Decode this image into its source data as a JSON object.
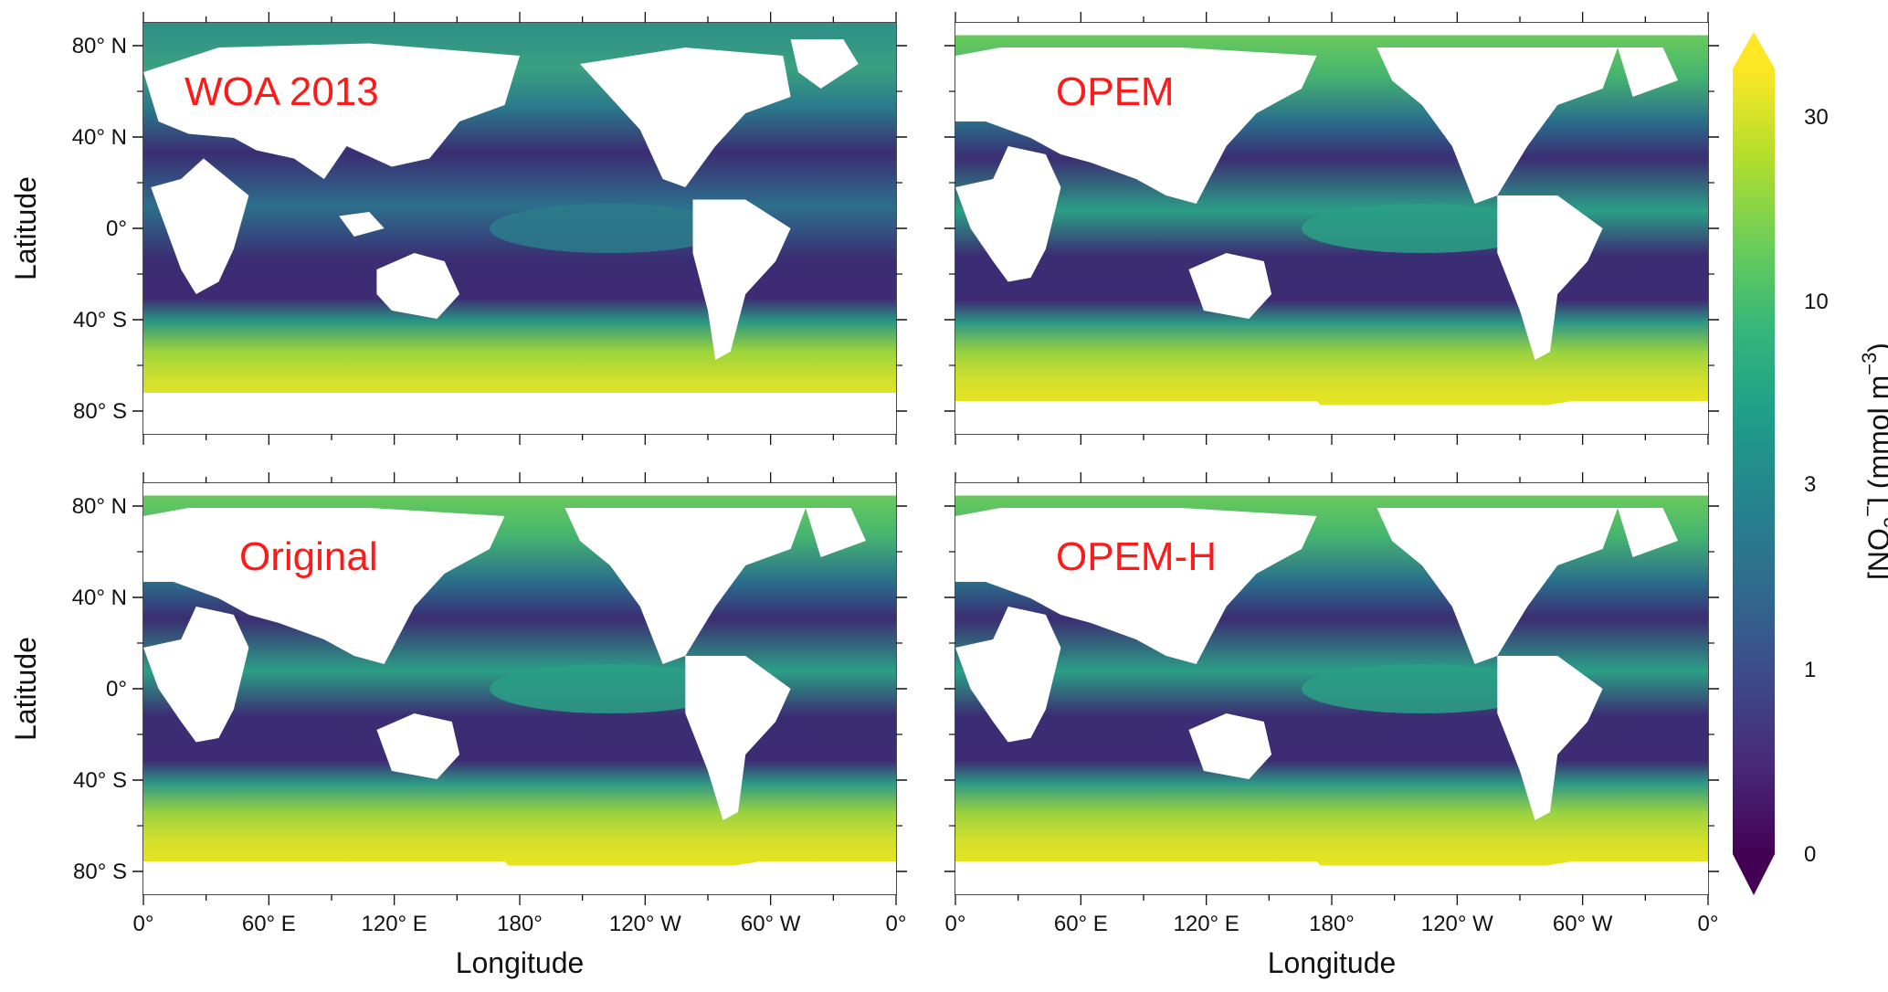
{
  "panels": [
    {
      "label": "WOA 2013",
      "row": 0,
      "col": 0
    },
    {
      "label": "OPEM",
      "row": 0,
      "col": 1
    },
    {
      "label": "Original",
      "row": 1,
      "col": 0
    },
    {
      "label": "OPEM-H",
      "row": 1,
      "col": 1
    }
  ],
  "axes": {
    "y_label": "Latitude",
    "x_label": "Longitude",
    "lat_ticks": [
      "80° N",
      "40° N",
      "0°",
      "40° S",
      "80° S"
    ],
    "lon_ticks": [
      "0°",
      "60° E",
      "120° E",
      "180°",
      "120° W",
      "60° W",
      "0°"
    ]
  },
  "colorbar": {
    "label_main": "[NO",
    "label_sub": "3",
    "label_sup1": "−",
    "label_mid": "] (mmol m",
    "label_sup2": "−3",
    "label_end": ")",
    "ticks": [
      "30",
      "10",
      "3",
      "1",
      "0"
    ],
    "colors": [
      "#fde725",
      "#b5de2b",
      "#6ece58",
      "#35b779",
      "#1f9e89",
      "#26828e",
      "#31688e",
      "#3e4989",
      "#482878",
      "#440154"
    ]
  },
  "colors": {
    "label_color": "#ff1a1a",
    "land": "#ffffff",
    "deep_blue": "#3b2d73",
    "mid_teal": "#2a8c8c",
    "high_yellow": "#c8dc3a"
  }
}
